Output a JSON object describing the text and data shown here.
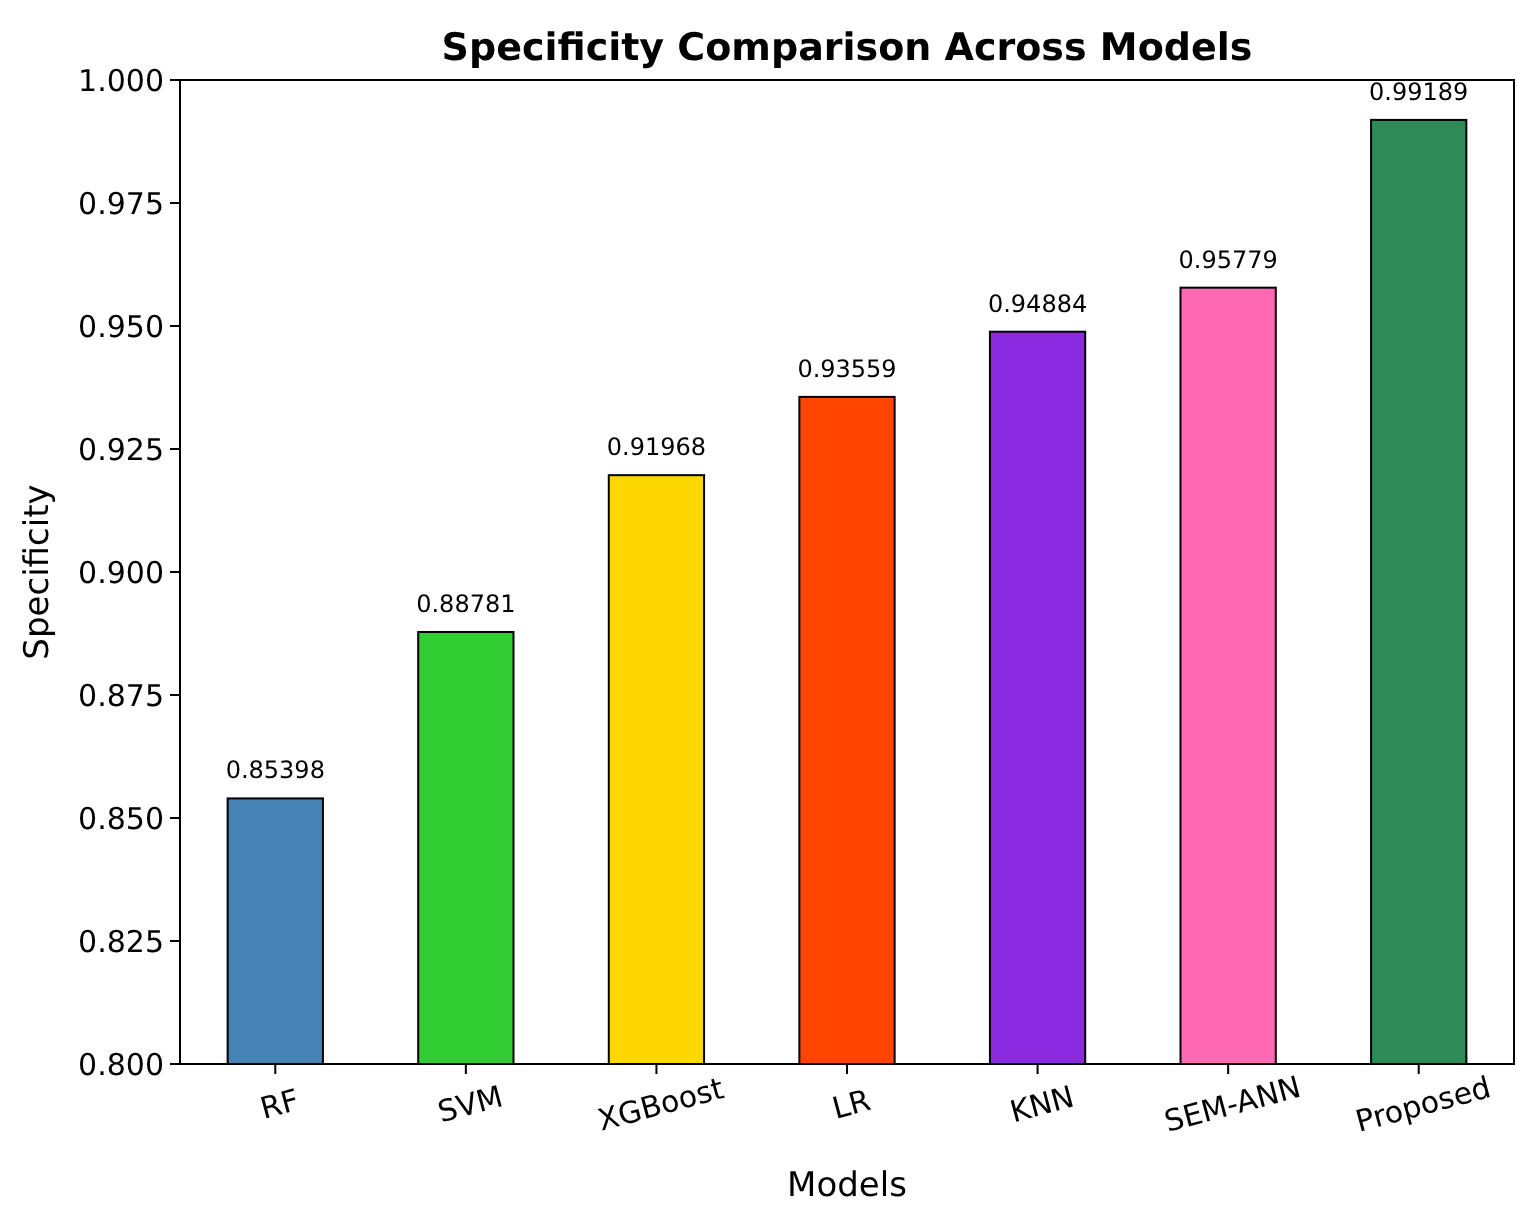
{
  "chart_data": {
    "type": "bar",
    "title": "Specificity Comparison Across Models",
    "xlabel": "Models",
    "ylabel": "Specificity",
    "categories": [
      "RF",
      "SVM",
      "XGBoost",
      "LR",
      "KNN",
      "SEM-ANN",
      "Proposed"
    ],
    "values": [
      0.85398,
      0.88781,
      0.91968,
      0.93559,
      0.94884,
      0.95779,
      0.99189
    ],
    "colors": [
      "#4682b4",
      "#32cd32",
      "#ffd700",
      "#ff4500",
      "#8a2be2",
      "#ff69b4",
      "#2e8b57"
    ],
    "ylim": [
      0.8,
      1.0
    ],
    "yticks": [
      {
        "value": 0.8,
        "label": "0.800"
      },
      {
        "value": 0.825,
        "label": "0.825"
      },
      {
        "value": 0.85,
        "label": "0.850"
      },
      {
        "value": 0.875,
        "label": "0.875"
      },
      {
        "value": 0.9,
        "label": "0.900"
      },
      {
        "value": 0.925,
        "label": "0.925"
      },
      {
        "value": 0.95,
        "label": "0.950"
      },
      {
        "value": 0.975,
        "label": "0.975"
      },
      {
        "value": 1.0,
        "label": "1.000"
      }
    ],
    "data_labels": true,
    "grid": false
  }
}
